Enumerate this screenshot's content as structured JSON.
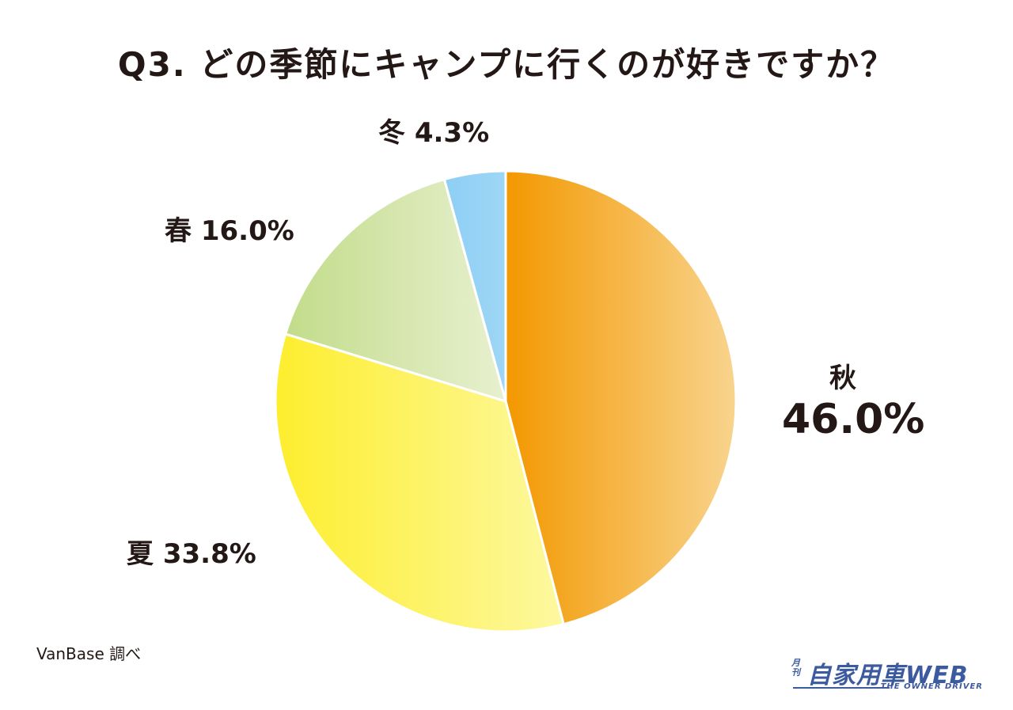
{
  "title": "Q3. どの季節にキャンプに行くのが好きですか？",
  "labels": {
    "autumn_name": "秋",
    "autumn_value": "46.0%",
    "summer": "夏 33.8%",
    "spring": "春 16.0%",
    "winter": "冬 4.3%"
  },
  "source": "VanBase 調べ",
  "logo": {
    "small": "月刊",
    "main": "自家用車WEB",
    "sub": "THE OWNER DRIVER"
  },
  "colors": {
    "autumn": [
      "#f39800",
      "#f8d48e"
    ],
    "summer": [
      "#fdee2e",
      "#fdf8a0"
    ],
    "spring": [
      "#c2dc8a",
      "#e8f0d0"
    ],
    "winter": [
      "#8ecff5",
      "#9ed6f5"
    ],
    "logo": "#3b5aa0"
  },
  "chart_data": {
    "type": "pie",
    "title": "Q3. どの季節にキャンプに行くのが好きですか？",
    "categories": [
      "秋",
      "夏",
      "春",
      "冬"
    ],
    "values": [
      46.0,
      33.8,
      16.0,
      4.3
    ],
    "unit": "%",
    "start_angle": "12 o'clock",
    "direction": "clockwise",
    "legend": "none (direct labels)",
    "source": "VanBase 調べ"
  }
}
